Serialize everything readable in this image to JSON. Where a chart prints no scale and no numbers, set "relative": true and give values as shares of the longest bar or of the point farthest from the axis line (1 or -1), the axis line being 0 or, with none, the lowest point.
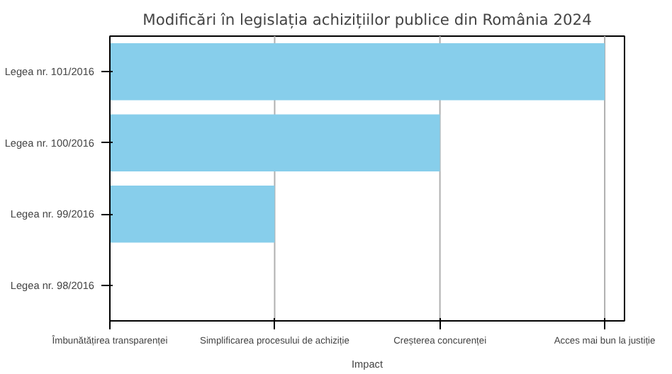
{
  "chart_data": {
    "type": "bar",
    "orientation": "horizontal",
    "relative": true,
    "title": "Modificări în legislația achizițiilor publice din România 2024",
    "xlabel": "Impact",
    "categories": [
      "Legea nr. 101/2016",
      "Legea nr. 100/2016",
      "Legea nr. 99/2016",
      "Legea nr. 98/2016"
    ],
    "values": [
      1,
      0.667,
      0.333,
      0
    ],
    "color": "#87ceeb",
    "annotations": [
      "Îmbunătățirea transparenței"
    ],
    "ref_lines": [
      {
        "axis": "x",
        "value": 0.333,
        "label": "Simplificarea procesului de achiziție",
        "color": "#b0b0b0"
      },
      {
        "axis": "x",
        "value": 0.667,
        "label": "Creșterea concurenței",
        "color": "#b0b0b0"
      },
      {
        "axis": "x",
        "value": 1,
        "label": "Acces mai bun la justiție",
        "color": "#b0b0b0"
      }
    ]
  }
}
